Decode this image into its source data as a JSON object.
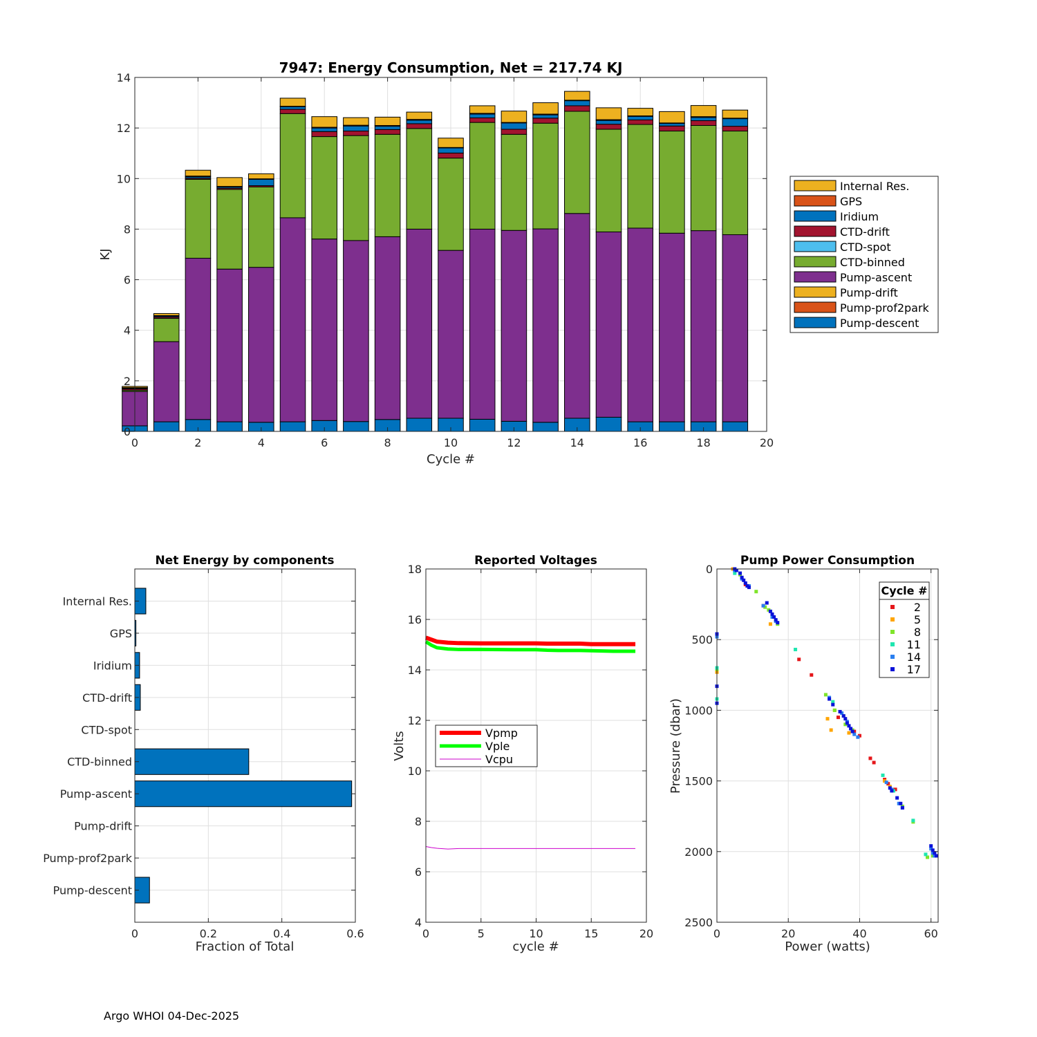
{
  "footer": "Argo WHOI 04-Dec-2025",
  "colors": {
    "Pump-descent": "#0072BD",
    "Pump-prof2park": "#D95319",
    "Pump-drift": "#EDB120",
    "Pump-ascent": "#7E2F8E",
    "CTD-binned": "#77AC30",
    "CTD-spot": "#4DBEEE",
    "CTD-drift": "#A2142F",
    "Iridium": "#0072BD",
    "GPS": "#D95319",
    "Internal Res.": "#EDB120",
    "hbar": "#0072BD",
    "Vpmp": "#FF0000",
    "Vple": "#00FF00",
    "Vcpu": "#CC00CC",
    "grid": "#dfdfdf",
    "axis": "#262626"
  },
  "chart_data": [
    {
      "type": "bar",
      "stacked": true,
      "title": "7947: Energy Consumption,  Net = 217.74 KJ",
      "xlabel": "Cycle #",
      "ylabel": "KJ",
      "xlim": [
        0,
        20
      ],
      "ylim": [
        0,
        14
      ],
      "xticks": [
        0,
        2,
        4,
        6,
        8,
        10,
        12,
        14,
        16,
        18,
        20
      ],
      "yticks": [
        0,
        2,
        4,
        6,
        8,
        10,
        12,
        14
      ],
      "legend_location": "outside-right",
      "legend_order": [
        "Internal Res.",
        "GPS",
        "Iridium",
        "CTD-drift",
        "CTD-spot",
        "CTD-binned",
        "Pump-ascent",
        "Pump-drift",
        "Pump-prof2park",
        "Pump-descent"
      ],
      "categories": [
        0,
        1,
        2,
        3,
        4,
        5,
        6,
        7,
        8,
        9,
        10,
        11,
        12,
        13,
        14,
        15,
        16,
        17,
        18,
        19
      ],
      "series": [
        {
          "name": "Pump-descent",
          "values": [
            0.22,
            0.38,
            0.47,
            0.38,
            0.36,
            0.38,
            0.43,
            0.39,
            0.47,
            0.52,
            0.52,
            0.48,
            0.4,
            0.36,
            0.52,
            0.56,
            0.38,
            0.38,
            0.38,
            0.38
          ]
        },
        {
          "name": "Pump-prof2park",
          "values": [
            0,
            0,
            0,
            0,
            0,
            0,
            0,
            0,
            0,
            0,
            0,
            0,
            0,
            0,
            0,
            0,
            0,
            0,
            0,
            0
          ]
        },
        {
          "name": "Pump-drift",
          "values": [
            0,
            0,
            0,
            0,
            0,
            0,
            0,
            0,
            0,
            0,
            0,
            0,
            0,
            0,
            0,
            0,
            0,
            0,
            0,
            0
          ]
        },
        {
          "name": "Pump-ascent",
          "values": [
            1.36,
            3.17,
            6.38,
            6.04,
            6.13,
            8.07,
            7.18,
            7.16,
            7.23,
            7.48,
            6.64,
            7.52,
            7.55,
            7.65,
            8.1,
            7.33,
            7.66,
            7.46,
            7.56,
            7.4
          ]
        },
        {
          "name": "CTD-binned",
          "values": [
            0.05,
            0.92,
            3.12,
            3.15,
            3.18,
            4.12,
            4.05,
            4.15,
            4.05,
            3.98,
            3.65,
            4.22,
            3.8,
            4.18,
            4.04,
            4.06,
            4.1,
            4.04,
            4.16,
            4.1
          ]
        },
        {
          "name": "CTD-spot",
          "values": [
            0,
            0,
            0,
            0,
            0,
            0,
            0,
            0,
            0,
            0,
            0,
            0,
            0,
            0,
            0,
            0,
            0,
            0,
            0,
            0
          ]
        },
        {
          "name": "CTD-drift",
          "values": [
            0.05,
            0.05,
            0.04,
            0.05,
            0.05,
            0.17,
            0.2,
            0.18,
            0.19,
            0.19,
            0.2,
            0.18,
            0.2,
            0.2,
            0.22,
            0.2,
            0.18,
            0.2,
            0.19,
            0.19
          ]
        },
        {
          "name": "Iridium",
          "values": [
            0.03,
            0.04,
            0.06,
            0.05,
            0.25,
            0.1,
            0.14,
            0.2,
            0.13,
            0.14,
            0.2,
            0.15,
            0.25,
            0.13,
            0.2,
            0.15,
            0.14,
            0.1,
            0.13,
            0.3
          ]
        },
        {
          "name": "GPS",
          "values": [
            0.02,
            0.02,
            0.03,
            0.02,
            0.02,
            0.02,
            0.03,
            0.03,
            0.03,
            0.03,
            0.02,
            0.03,
            0.02,
            0.03,
            0.02,
            0.03,
            0.02,
            0.02,
            0.03,
            0.02
          ]
        },
        {
          "name": "Internal Res.",
          "values": [
            0.05,
            0.08,
            0.23,
            0.35,
            0.2,
            0.32,
            0.42,
            0.3,
            0.33,
            0.29,
            0.37,
            0.3,
            0.45,
            0.45,
            0.35,
            0.47,
            0.3,
            0.45,
            0.44,
            0.32
          ]
        }
      ]
    },
    {
      "type": "bar",
      "orientation": "horizontal",
      "title": "Net Energy by components",
      "xlabel": "Fraction of Total",
      "xlim": [
        0,
        0.6
      ],
      "xticks": [
        0,
        0.2,
        0.4,
        0.6
      ],
      "categories": [
        "Pump-descent",
        "Pump-prof2park",
        "Pump-drift",
        "Pump-ascent",
        "CTD-binned",
        "CTD-spot",
        "CTD-drift",
        "Iridium",
        "GPS",
        "Internal Res."
      ],
      "values": [
        0.04,
        0.0,
        0.0,
        0.59,
        0.31,
        0.0,
        0.015,
        0.013,
        0.003,
        0.03
      ]
    },
    {
      "type": "line",
      "title": "Reported Voltages",
      "xlabel": "cycle #",
      "ylabel": "Volts",
      "xlim": [
        0,
        20
      ],
      "ylim": [
        4,
        18
      ],
      "xticks": [
        0,
        5,
        10,
        15,
        20
      ],
      "yticks": [
        4,
        6,
        8,
        10,
        12,
        14,
        16,
        18
      ],
      "legend_location": "middle-left",
      "x": [
        0,
        0.5,
        1,
        2,
        3,
        5,
        8,
        10,
        11,
        12,
        14,
        15,
        17,
        19
      ],
      "series": [
        {
          "name": "Vpmp",
          "values": [
            15.28,
            15.2,
            15.12,
            15.08,
            15.06,
            15.05,
            15.05,
            15.05,
            15.04,
            15.04,
            15.04,
            15.02,
            15.02,
            15.02
          ]
        },
        {
          "name": "Vple",
          "values": [
            15.12,
            14.98,
            14.88,
            14.83,
            14.81,
            14.81,
            14.8,
            14.8,
            14.78,
            14.77,
            14.77,
            14.76,
            14.74,
            14.74
          ]
        },
        {
          "name": "Vcpu",
          "values": [
            7.0,
            6.96,
            6.93,
            6.9,
            6.92,
            6.92,
            6.92,
            6.92,
            6.92,
            6.92,
            6.92,
            6.92,
            6.92,
            6.92
          ]
        }
      ]
    },
    {
      "type": "scatter",
      "title": "Pump Power Consumption",
      "xlabel": "Power (watts)",
      "ylabel": "Pressure (dbar)",
      "xlim": [
        0,
        62
      ],
      "ylim": [
        0,
        2500
      ],
      "y_reversed": true,
      "xticks": [
        0,
        20,
        40,
        60
      ],
      "yticks": [
        0,
        500,
        1000,
        1500,
        2000,
        2500
      ],
      "legend_title": "Cycle #",
      "legend_location": "top-right",
      "series": [
        {
          "name": "2",
          "color": "#E5161A",
          "points": [
            [
              4.5,
              0
            ],
            [
              8,
              110
            ],
            [
              13,
              260
            ],
            [
              26.5,
              750
            ],
            [
              23,
              640
            ],
            [
              34,
              1050
            ],
            [
              38.5,
              1150
            ],
            [
              40,
              1180
            ],
            [
              43,
              1340
            ],
            [
              44,
              1370
            ],
            [
              47,
              1490
            ],
            [
              48,
              1520
            ],
            [
              50,
              1560
            ]
          ]
        },
        {
          "name": "5",
          "color": "#FFA500",
          "points": [
            [
              4.5,
              0
            ],
            [
              15,
              390
            ],
            [
              0,
              730
            ],
            [
              31,
              1060
            ],
            [
              32,
              1140
            ],
            [
              33,
              1000
            ],
            [
              37,
              1160
            ],
            [
              47,
              1500
            ],
            [
              48.5,
              1540
            ],
            [
              59,
              2040
            ],
            [
              61,
              2030
            ]
          ]
        },
        {
          "name": "8",
          "color": "#7FE52A",
          "points": [
            [
              6.5,
              40
            ],
            [
              11,
              160
            ],
            [
              13.5,
              270
            ],
            [
              14.5,
              290
            ],
            [
              17,
              390
            ],
            [
              0,
              710
            ],
            [
              30.5,
              890
            ],
            [
              33,
              1000
            ],
            [
              35.5,
              1040
            ],
            [
              36,
              1100
            ],
            [
              38,
              1140
            ],
            [
              52,
              1680
            ],
            [
              55,
              1790
            ],
            [
              59,
              2040
            ],
            [
              60.5,
              2030
            ]
          ]
        },
        {
          "name": "11",
          "color": "#1FE6B0",
          "points": [
            [
              5,
              30
            ],
            [
              0,
              700
            ],
            [
              0,
              920
            ],
            [
              22,
              570
            ],
            [
              32.5,
              940
            ],
            [
              46.5,
              1460
            ],
            [
              49.5,
              1570
            ],
            [
              55,
              1780
            ],
            [
              58.5,
              2020
            ]
          ]
        },
        {
          "name": "14",
          "color": "#2A7FF0",
          "points": [
            [
              5,
              10
            ],
            [
              7,
              70
            ],
            [
              9,
              120
            ],
            [
              13,
              260
            ],
            [
              15.5,
              340
            ],
            [
              16.5,
              370
            ],
            [
              0,
              480
            ],
            [
              31.5,
              910
            ],
            [
              35,
              1020
            ],
            [
              36.5,
              1080
            ],
            [
              38.5,
              1170
            ],
            [
              39.5,
              1190
            ],
            [
              47.5,
              1510
            ],
            [
              49,
              1560
            ],
            [
              51,
              1660
            ],
            [
              52,
              1690
            ],
            [
              60,
              1980
            ],
            [
              60.5,
              2010
            ],
            [
              61,
              2030
            ]
          ]
        },
        {
          "name": "17",
          "color": "#0A12D9",
          "points": [
            [
              5,
              0
            ],
            [
              5.5,
              10
            ],
            [
              6.5,
              30
            ],
            [
              7,
              60
            ],
            [
              7.5,
              80
            ],
            [
              8,
              100
            ],
            [
              8.5,
              120
            ],
            [
              9,
              130
            ],
            [
              14,
              240
            ],
            [
              15,
              300
            ],
            [
              15.5,
              320
            ],
            [
              16,
              340
            ],
            [
              16.5,
              360
            ],
            [
              17,
              380
            ],
            [
              0,
              460
            ],
            [
              0,
              830
            ],
            [
              0,
              950
            ],
            [
              31.5,
              920
            ],
            [
              32.5,
              960
            ],
            [
              34.5,
              1010
            ],
            [
              35.5,
              1040
            ],
            [
              36,
              1060
            ],
            [
              36.5,
              1090
            ],
            [
              37,
              1110
            ],
            [
              37.5,
              1130
            ],
            [
              38,
              1150
            ],
            [
              48.5,
              1550
            ],
            [
              49,
              1570
            ],
            [
              50.5,
              1620
            ],
            [
              51.5,
              1660
            ],
            [
              52,
              1690
            ],
            [
              60,
              1960
            ],
            [
              60.5,
              1990
            ],
            [
              61,
              2010
            ],
            [
              61.5,
              2030
            ]
          ]
        }
      ]
    }
  ]
}
